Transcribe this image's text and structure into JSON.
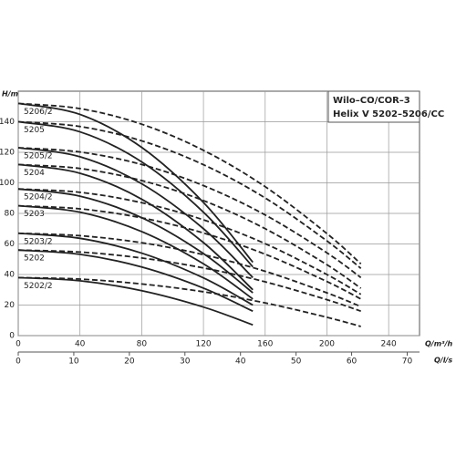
{
  "chart_data": {
    "type": "line",
    "title": "Wilo–CO/COR–3",
    "subtitle": "Helix V 5202–5206/CC",
    "y_label": "H/m",
    "x_label": "Q/m³/h",
    "x2_label": "Q/l/s",
    "xlim": [
      0,
      260
    ],
    "xticks": [
      0,
      40,
      80,
      120,
      160,
      200,
      240
    ],
    "x2lim": [
      0,
      72.22
    ],
    "x2ticks": [
      0,
      10,
      20,
      30,
      40,
      50,
      60,
      70
    ],
    "ylim": [
      0,
      160
    ],
    "yticks": [
      0,
      20,
      40,
      60,
      80,
      100,
      120,
      140
    ],
    "grid": true,
    "color": "#222222",
    "series": [
      {
        "name": "5206/2",
        "style": "solid",
        "x": [
          0,
          40,
          80,
          120,
          152
        ],
        "values": [
          152,
          144.8,
          123.2,
          87.2,
          48
        ]
      },
      {
        "name": "5205",
        "style": "solid",
        "x": [
          0,
          40,
          80,
          120,
          152
        ],
        "values": [
          140,
          133.4,
          113.7,
          80.8,
          45
        ]
      },
      {
        "name": "5205/2",
        "style": "solid",
        "x": [
          0,
          40,
          80,
          120,
          152
        ],
        "values": [
          123,
          117.1,
          99.4,
          70.0,
          38
        ]
      },
      {
        "name": "5204",
        "style": "solid",
        "x": [
          0,
          40,
          80,
          120,
          152
        ],
        "values": [
          112,
          106.3,
          89.3,
          60.9,
          30
        ]
      },
      {
        "name": "5204/2",
        "style": "solid",
        "x": [
          0,
          40,
          80,
          120,
          152
        ],
        "values": [
          96,
          91.3,
          77.2,
          53.7,
          28
        ]
      },
      {
        "name": "5203",
        "style": "solid",
        "x": [
          0,
          40,
          80,
          120,
          152
        ],
        "values": [
          85,
          80.8,
          68.1,
          47.0,
          24
        ]
      },
      {
        "name": "5203/2",
        "style": "solid",
        "x": [
          0,
          40,
          80,
          120,
          152
        ],
        "values": [
          67,
          63.7,
          54.0,
          37.8,
          20
        ]
      },
      {
        "name": "5202",
        "style": "solid",
        "x": [
          0,
          40,
          80,
          120,
          152
        ],
        "values": [
          56,
          53.2,
          44.9,
          31.1,
          16
        ]
      },
      {
        "name": "5202/2",
        "style": "solid",
        "x": [
          0,
          40,
          80,
          120,
          152
        ],
        "values": [
          38,
          35.9,
          29.4,
          18.7,
          7
        ]
      },
      {
        "style": "dashed",
        "x": [
          0,
          40,
          80,
          120,
          160,
          200,
          222
        ],
        "values": [
          152,
          148.6,
          138.4,
          121.3,
          97.5,
          66.8,
          47
        ]
      },
      {
        "style": "dashed",
        "x": [
          0,
          40,
          80,
          120,
          160,
          200,
          222
        ],
        "values": [
          140,
          136.9,
          127.5,
          111.9,
          90.1,
          62.0,
          44
        ]
      },
      {
        "style": "dashed",
        "x": [
          0,
          40,
          80,
          120,
          160,
          200,
          222
        ],
        "values": [
          123,
          120.2,
          112.0,
          98.2,
          79.0,
          54.2,
          38
        ]
      },
      {
        "style": "dashed",
        "x": [
          0,
          40,
          80,
          120,
          160,
          200,
          222
        ],
        "values": [
          112,
          109.4,
          101.5,
          88.4,
          70.0,
          46.4,
          31
        ]
      },
      {
        "style": "dashed",
        "x": [
          0,
          40,
          80,
          120,
          160,
          200,
          222
        ],
        "values": [
          96,
          93.8,
          87.0,
          75.8,
          60.2,
          40.0,
          27
        ]
      },
      {
        "style": "dashed",
        "x": [
          0,
          40,
          80,
          120,
          160,
          200,
          222
        ],
        "values": [
          85,
          83.0,
          77.1,
          67.2,
          53.3,
          35.4,
          24
        ]
      },
      {
        "style": "dashed",
        "x": [
          0,
          40,
          80,
          120,
          160,
          200,
          222
        ],
        "values": [
          67,
          65.4,
          60.8,
          53.0,
          42.1,
          28.0,
          19
        ]
      },
      {
        "style": "dashed",
        "x": [
          0,
          40,
          80,
          120,
          160,
          200,
          222
        ],
        "values": [
          56,
          54.7,
          50.8,
          44.3,
          35.2,
          23.5,
          16
        ]
      },
      {
        "style": "dashed",
        "x": [
          0,
          40,
          80,
          120,
          160,
          200,
          222
        ],
        "values": [
          38,
          37.0,
          33.8,
          28.7,
          21.4,
          12.0,
          6
        ]
      }
    ]
  }
}
